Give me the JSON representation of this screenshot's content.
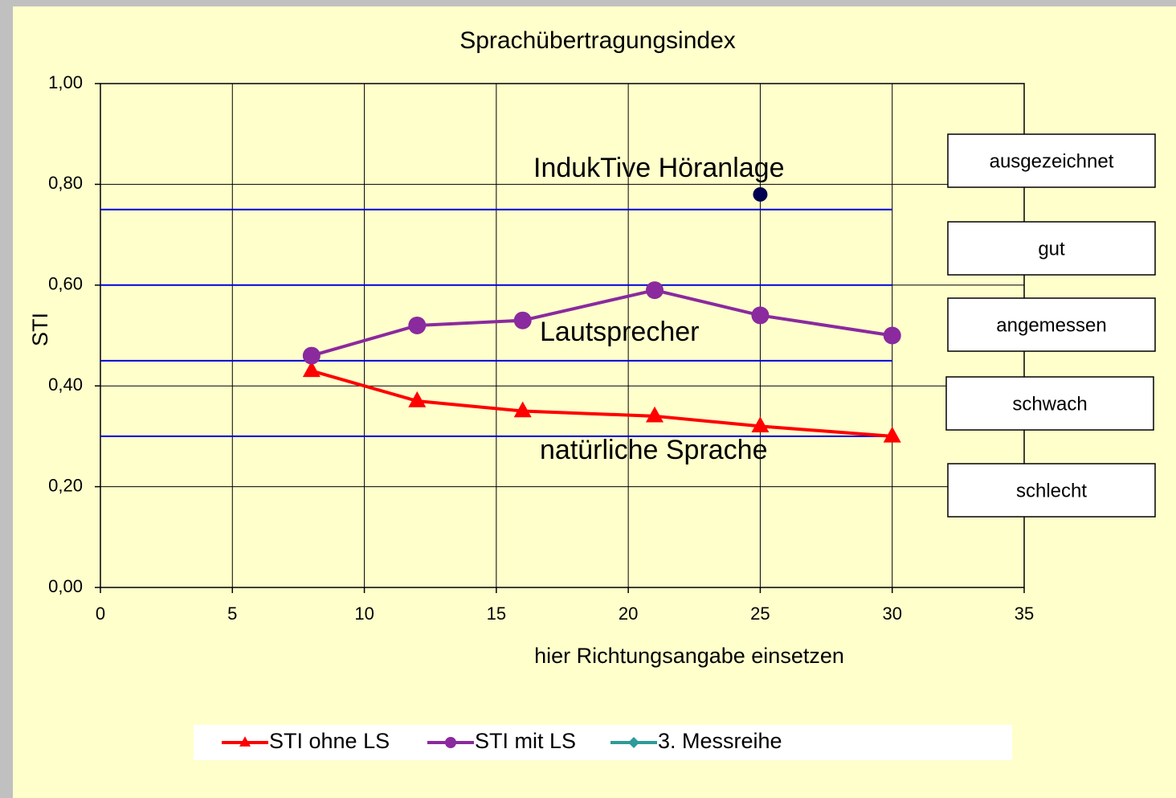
{
  "chart_data": {
    "type": "line",
    "title": "Sprachübertragungsindex",
    "x_label": "hier Richtungsangabe einsetzen",
    "y_label": "STI",
    "x": [
      8,
      12,
      16,
      21,
      25,
      30
    ],
    "series": [
      {
        "name": "STI ohne LS",
        "color": "#ff0000",
        "marker": "triangle",
        "values": [
          0.43,
          0.37,
          0.35,
          0.34,
          0.32,
          0.3
        ]
      },
      {
        "name": "STI mit LS",
        "color": "#8a2a9e",
        "marker": "circle",
        "values": [
          0.46,
          0.52,
          0.53,
          0.59,
          0.54,
          0.5
        ]
      },
      {
        "name": "3. Messreihe",
        "color": "#2e9a9a",
        "marker": "diamond",
        "values": [
          null,
          null,
          null,
          null,
          null,
          null
        ]
      }
    ],
    "points": [
      {
        "x": 25,
        "y": 0.78,
        "color": "#000050"
      }
    ],
    "reference_lines": {
      "color": "#0000dd",
      "x_range": [
        0,
        30
      ],
      "values": [
        0.75,
        0.6,
        0.45,
        0.3
      ]
    },
    "annotations": [
      "IndukTive Höranlage",
      "Lautsprecher",
      "natürliche Sprache"
    ],
    "rating_labels": [
      "ausgezeichnet",
      "gut",
      "angemessen",
      "schwach",
      "schlecht"
    ],
    "xlim": [
      0,
      35
    ],
    "xticks": [
      0,
      5,
      10,
      15,
      20,
      25,
      30,
      35
    ],
    "ylim": [
      0,
      1
    ],
    "yticks": [
      {
        "value": 0,
        "label": "0,00"
      },
      {
        "value": 0.2,
        "label": "0,20"
      },
      {
        "value": 0.4,
        "label": "0,40"
      },
      {
        "value": 0.6,
        "label": "0,60"
      },
      {
        "value": 0.8,
        "label": "0,80"
      },
      {
        "value": 1,
        "label": "1,00"
      }
    ],
    "grid": true,
    "legend": "bottom"
  }
}
